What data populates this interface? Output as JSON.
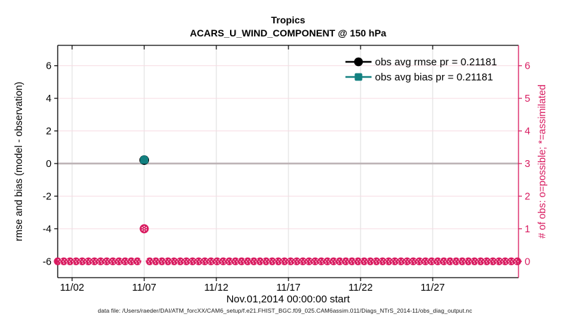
{
  "chart_data": {
    "type": "scatter",
    "title": "Tropics",
    "subtitle": "ACARS_U_WIND_COMPONENT @ 150 hPa",
    "xlabel": "Nov.01,2014 00:00:00 start",
    "ylabel_left": "rmse and bias (model - observation)",
    "ylabel_right": "# of obs: o=possible; *=assimilated",
    "x_tick_labels": [
      "11/02",
      "11/07",
      "11/12",
      "11/17",
      "11/22",
      "11/27"
    ],
    "x_tick_days": [
      2,
      7,
      12,
      17,
      22,
      27
    ],
    "x_range_days": [
      1,
      32.95
    ],
    "left_axis": {
      "ticks": [
        6,
        4,
        2,
        0,
        -2,
        -4,
        -6
      ],
      "range": [
        -7.0,
        7.25
      ]
    },
    "right_axis": {
      "ticks": [
        6,
        5,
        4,
        3,
        2,
        1,
        0
      ],
      "range": [
        0,
        6
      ],
      "maps_to_left": "right 0 aligns with left -6, right 6 with left 6"
    },
    "grid": {
      "vertical_on": true,
      "horizontal_on": true
    },
    "zero_line": {
      "value": 0
    },
    "legend_position": "top-right-inside",
    "series": [
      {
        "name": "obs avg rmse pr = 0.21181",
        "marker": "filled-circle",
        "axis": "left",
        "points": [
          {
            "day": 7,
            "value": 0.21181
          }
        ]
      },
      {
        "name": "obs avg bias pr = 0.21181",
        "marker": "filled-square",
        "axis": "left",
        "points": [
          {
            "day": 7,
            "value": 0.21181
          }
        ]
      }
    ],
    "obs_counts": {
      "axis": "right",
      "marker": "circle-with-asterisk",
      "bin_start_day": 1.0,
      "bin_step_day": 0.425,
      "bin_count": 76,
      "default_count": 0,
      "exceptions": [
        {
          "day": 7.0,
          "count": 1
        }
      ]
    },
    "colors": {
      "obs_pink": "#D81A5F",
      "grid_pink": "#F7DBE3",
      "grid_gray": "#DCDCDC",
      "zero_gray": "#BDB3B6",
      "bias_teal": "#128080",
      "rmse_black": "#000000",
      "frame_black": "#000000"
    }
  },
  "footer": "data file: /Users/raeder/DAI/ATM_forcXX/CAM6_setup/f.e21.FHIST_BGC.f09_025.CAM6assim.011/Diags_NTrS_2014-11/obs_diag_output.nc"
}
